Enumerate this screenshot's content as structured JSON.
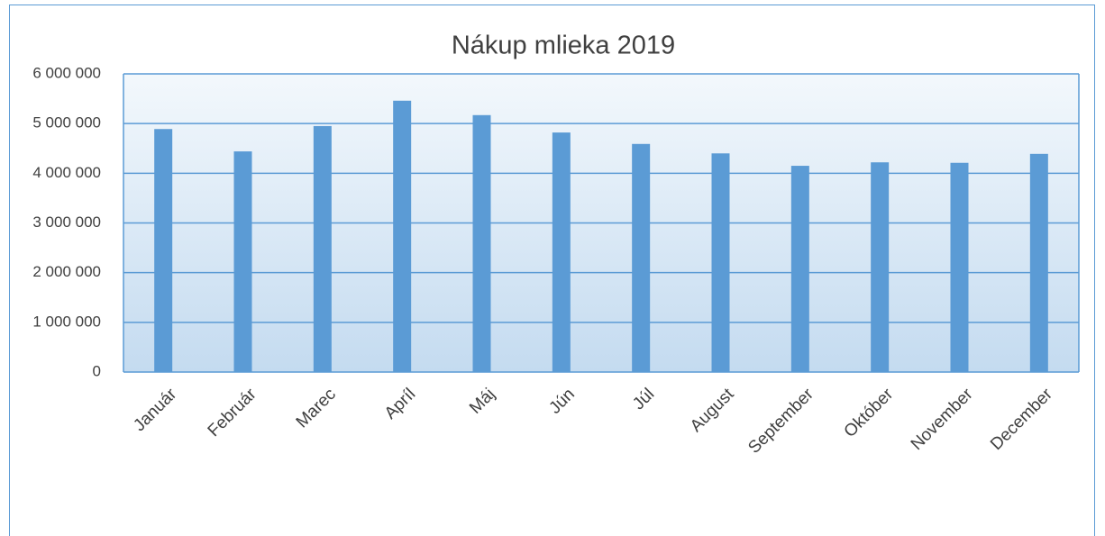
{
  "chart_data": {
    "type": "bar",
    "title": "Nákup mlieka 2019",
    "categories": [
      "Január",
      "Február",
      "Marec",
      "Apríl",
      "Máj",
      "Jún",
      "Júl",
      "August",
      "September",
      "Október",
      "November",
      "December"
    ],
    "values": [
      4890000,
      4440000,
      4950000,
      5460000,
      5170000,
      4820000,
      4590000,
      4400000,
      4150000,
      4220000,
      4210000,
      4390000
    ],
    "color": "#5b9bd5",
    "ylim": [
      0,
      6000000
    ],
    "yticks": [
      0,
      {
        "value": 1000000,
        "label": "1 000 000"
      },
      {
        "value": 2000000,
        "label": "2 000 000"
      },
      {
        "value": 3000000,
        "label": "3 000 000"
      },
      {
        "value": 4000000,
        "label": "4 000 000"
      },
      {
        "value": 5000000,
        "label": "5 000 000"
      },
      {
        "value": 6000000,
        "label": "6 000 000"
      }
    ],
    "grid": true
  }
}
